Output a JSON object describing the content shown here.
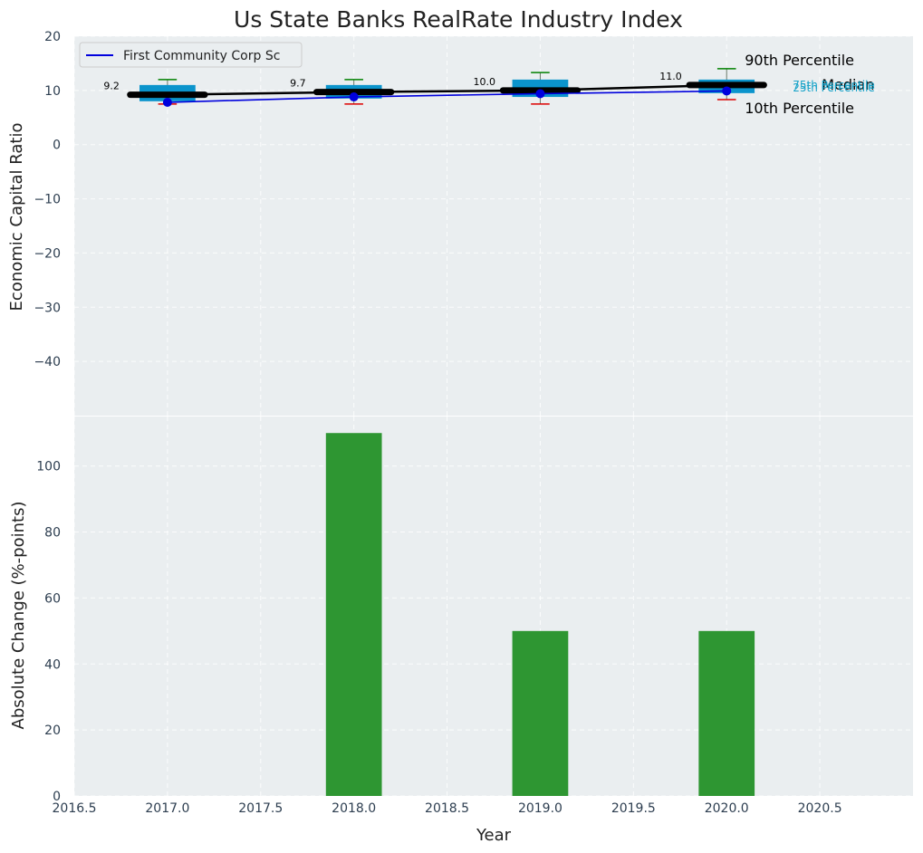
{
  "chart_data": [
    {
      "type": "box",
      "panel": "top",
      "title": "Us State Banks RealRate Industry Index",
      "ylabel": "Economic Capital Ratio",
      "ylim": [
        -50,
        20
      ],
      "yticks": [
        20,
        10,
        0,
        -10,
        -20,
        -30,
        -40
      ],
      "ytick_labels": [
        "20",
        "10",
        "0",
        "−10",
        "−20",
        "−30",
        "−40"
      ],
      "xlim": [
        2016.5,
        2021.0
      ],
      "grid": true,
      "boxes": [
        {
          "x": 2017.0,
          "p10": 7.5,
          "p25": 8.0,
          "median": 9.2,
          "p75": 11.0,
          "p90": 12.0
        },
        {
          "x": 2018.0,
          "p10": 7.5,
          "p25": 8.5,
          "median": 9.7,
          "p75": 11.0,
          "p90": 12.0
        },
        {
          "x": 2019.0,
          "p10": 7.5,
          "p25": 8.8,
          "median": 10.0,
          "p75": 12.0,
          "p90": 13.3
        },
        {
          "x": 2020.0,
          "p10": 8.3,
          "p25": 9.5,
          "median": 11.0,
          "p75": 12.0,
          "p90": 14.0
        }
      ],
      "median_labels": [
        "9.2",
        "9.7",
        "10.0",
        "11.0"
      ],
      "series": [
        {
          "name": "First Community Corp Sc",
          "color": "#0000dd",
          "x": [
            2017,
            2018,
            2019,
            2020
          ],
          "values": [
            7.8,
            8.8,
            9.4,
            9.9
          ]
        }
      ],
      "legend": {
        "entry": "First Community Corp Sc",
        "placement": "top-left"
      },
      "percentile_labels": {
        "p90": "90th Percentile",
        "median": "Median",
        "p10": "10th Percentile",
        "p75": "75th Percentile",
        "p25": "25th Percentile"
      },
      "colors": {
        "box": "#0b94cc",
        "p90_whisker": "#008000",
        "p10_whisker": "#dd0000",
        "median": "#000000"
      }
    },
    {
      "type": "bar",
      "panel": "bottom",
      "xlabel": "Year",
      "ylabel": "Absolute Change (%-points)",
      "ylim": [
        0,
        115
      ],
      "yticks": [
        0,
        20,
        40,
        60,
        80,
        100
      ],
      "ytick_labels": [
        "0",
        "20",
        "40",
        "60",
        "80",
        "100"
      ],
      "xlim": [
        2016.5,
        2021.0
      ],
      "xticks": [
        2016.5,
        2017.0,
        2017.5,
        2018.0,
        2018.5,
        2019.0,
        2019.5,
        2020.0,
        2020.5
      ],
      "xtick_labels": [
        "2016.5",
        "2017.0",
        "2017.5",
        "2018.0",
        "2018.5",
        "2019.0",
        "2019.5",
        "2020.0",
        "2020.5"
      ],
      "x": [
        2017,
        2018,
        2019,
        2020
      ],
      "values": [
        0,
        110,
        50,
        50
      ],
      "color": "#2e9632",
      "grid": true
    }
  ]
}
